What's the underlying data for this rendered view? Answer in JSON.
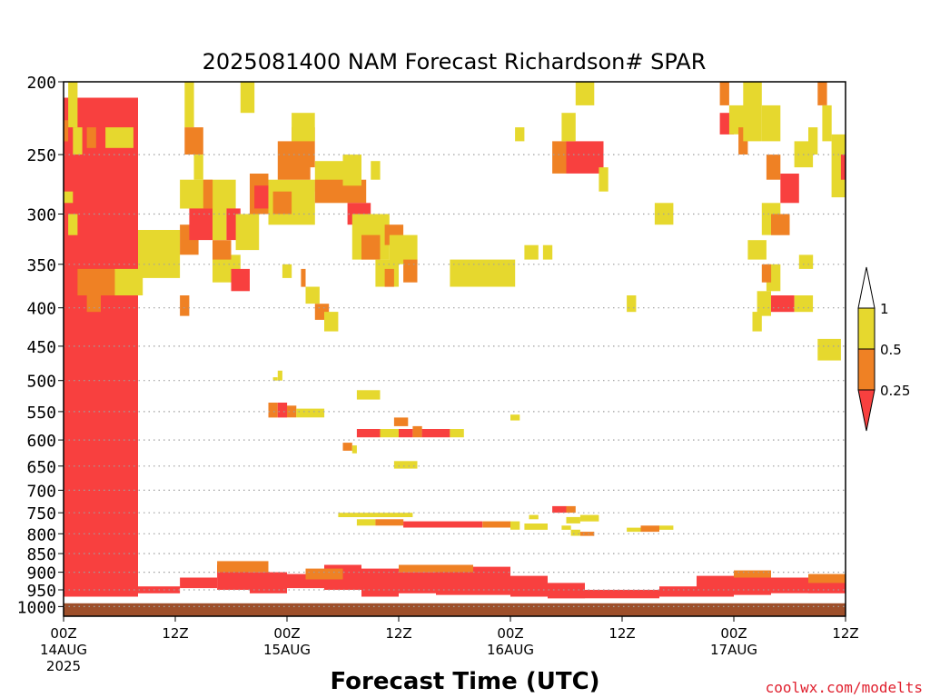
{
  "chart_data": {
    "type": "heatmap",
    "title": "2025081400 NAM Forecast Richardson# SPAR",
    "xlabel": "Forecast Time (UTC)",
    "ylabel": "",
    "credit": "coolwx.com/modelts",
    "y_scale": "log",
    "ylim": [
      1030,
      200
    ],
    "y_ticks": [
      200,
      250,
      300,
      350,
      400,
      450,
      500,
      550,
      600,
      650,
      700,
      750,
      800,
      850,
      900,
      950,
      1000
    ],
    "y_tick_labels": [
      "200",
      "250",
      "300",
      "350",
      "400",
      "450",
      "500",
      "550",
      "600",
      "650",
      "700",
      "750",
      "800",
      "850",
      "900",
      "950",
      "1000"
    ],
    "grid": true,
    "xlim_hours": [
      0,
      84
    ],
    "x_ticks": [
      {
        "hour": 0,
        "label": "00Z",
        "sub": "14AUG",
        "sub2": "2025"
      },
      {
        "hour": 12,
        "label": "12Z",
        "sub": "",
        "sub2": ""
      },
      {
        "hour": 24,
        "label": "00Z",
        "sub": "15AUG",
        "sub2": ""
      },
      {
        "hour": 36,
        "label": "12Z",
        "sub": "",
        "sub2": ""
      },
      {
        "hour": 48,
        "label": "00Z",
        "sub": "16AUG",
        "sub2": ""
      },
      {
        "hour": 60,
        "label": "12Z",
        "sub": "",
        "sub2": ""
      },
      {
        "hour": 72,
        "label": "00Z",
        "sub": "17AUG",
        "sub2": ""
      },
      {
        "hour": 84,
        "label": "12Z",
        "sub": "",
        "sub2": ""
      }
    ],
    "colorbar": {
      "placement": "right",
      "labels": [
        "1",
        "0.5",
        "0.25"
      ],
      "colors": {
        "high": "#e6d82e",
        "mid": "#ef8124",
        "low": "#f8403f",
        "ground": "#9e4f2a",
        "above": "#ffffff"
      }
    },
    "ground_pressure_hPa": 990,
    "cells": [
      [
        0.0,
        8.0,
        210,
        970,
        "low"
      ],
      [
        8.0,
        12.5,
        940,
        960,
        "low"
      ],
      [
        12.5,
        16.5,
        915,
        945,
        "low"
      ],
      [
        16.5,
        20.0,
        880,
        950,
        "low"
      ],
      [
        20.0,
        24.0,
        900,
        960,
        "low"
      ],
      [
        24.0,
        28.0,
        905,
        945,
        "low"
      ],
      [
        28.0,
        32.0,
        880,
        950,
        "low"
      ],
      [
        32.0,
        36.0,
        890,
        970,
        "low"
      ],
      [
        36.0,
        40.0,
        900,
        960,
        "low"
      ],
      [
        40.0,
        44.0,
        880,
        965,
        "low"
      ],
      [
        44.0,
        48.0,
        885,
        965,
        "low"
      ],
      [
        48.0,
        52.0,
        910,
        970,
        "low"
      ],
      [
        52.0,
        56.0,
        930,
        975,
        "low"
      ],
      [
        56.0,
        60.0,
        950,
        975,
        "low"
      ],
      [
        60.0,
        64.0,
        950,
        975,
        "low"
      ],
      [
        64.0,
        68.0,
        940,
        970,
        "low"
      ],
      [
        68.0,
        72.0,
        910,
        970,
        "low"
      ],
      [
        72.0,
        76.0,
        900,
        965,
        "low"
      ],
      [
        76.0,
        80.0,
        915,
        960,
        "low"
      ],
      [
        80.0,
        84.0,
        920,
        960,
        "low"
      ],
      [
        16.5,
        22.0,
        870,
        900,
        "mid"
      ],
      [
        26.0,
        30.0,
        890,
        920,
        "mid"
      ],
      [
        36.0,
        44.0,
        880,
        900,
        "mid"
      ],
      [
        72.0,
        76.0,
        895,
        915,
        "mid"
      ],
      [
        80.0,
        84.0,
        905,
        930,
        "mid"
      ],
      [
        0.5,
        1.5,
        200,
        230,
        "high"
      ],
      [
        0.0,
        0.5,
        225,
        240,
        "mid"
      ],
      [
        1.0,
        2.0,
        230,
        250,
        "high"
      ],
      [
        2.5,
        3.5,
        230,
        245,
        "mid"
      ],
      [
        3.5,
        4.5,
        230,
        245,
        "low"
      ],
      [
        4.5,
        7.5,
        230,
        245,
        "high"
      ],
      [
        0.0,
        1.0,
        280,
        290,
        "high"
      ],
      [
        0.5,
        1.5,
        300,
        320,
        "high"
      ],
      [
        1.5,
        5.5,
        355,
        385,
        "mid"
      ],
      [
        2.5,
        4.0,
        385,
        405,
        "mid"
      ],
      [
        5.5,
        8.5,
        355,
        385,
        "high"
      ],
      [
        8.0,
        12.5,
        315,
        365,
        "high"
      ],
      [
        12.5,
        14.5,
        310,
        340,
        "mid"
      ],
      [
        13.0,
        14.0,
        200,
        230,
        "high"
      ],
      [
        13.0,
        15.0,
        230,
        250,
        "mid"
      ],
      [
        14.0,
        15.0,
        250,
        270,
        "high"
      ],
      [
        12.5,
        18.5,
        270,
        295,
        "high"
      ],
      [
        13.5,
        16.0,
        295,
        325,
        "low"
      ],
      [
        16.0,
        17.5,
        295,
        325,
        "high"
      ],
      [
        17.5,
        19.0,
        295,
        325,
        "low"
      ],
      [
        16.0,
        19.0,
        340,
        370,
        "high"
      ],
      [
        16.0,
        18.0,
        325,
        345,
        "mid"
      ],
      [
        15.0,
        16.0,
        270,
        295,
        "mid"
      ],
      [
        18.5,
        21.0,
        300,
        335,
        "high"
      ],
      [
        18.0,
        20.0,
        355,
        380,
        "low"
      ],
      [
        19.0,
        20.5,
        200,
        220,
        "high"
      ],
      [
        20.0,
        22.0,
        265,
        300,
        "mid"
      ],
      [
        20.5,
        22.5,
        275,
        295,
        "low"
      ],
      [
        22.0,
        27.0,
        270,
        310,
        "high"
      ],
      [
        22.5,
        24.5,
        280,
        300,
        "mid"
      ],
      [
        23.0,
        26.5,
        240,
        270,
        "mid"
      ],
      [
        24.5,
        27.0,
        230,
        260,
        "mid"
      ],
      [
        24.5,
        27.0,
        220,
        240,
        "high"
      ],
      [
        27.0,
        30.0,
        255,
        280,
        "high"
      ],
      [
        27.0,
        32.5,
        270,
        290,
        "mid"
      ],
      [
        30.0,
        32.0,
        250,
        275,
        "high"
      ],
      [
        33.0,
        34.0,
        255,
        270,
        "high"
      ],
      [
        30.5,
        33.0,
        290,
        310,
        "low"
      ],
      [
        31.0,
        35.0,
        300,
        345,
        "high"
      ],
      [
        32.0,
        34.0,
        320,
        345,
        "mid"
      ],
      [
        34.5,
        36.5,
        310,
        330,
        "mid"
      ],
      [
        35.0,
        38.0,
        320,
        350,
        "high"
      ],
      [
        33.5,
        36.0,
        345,
        375,
        "high"
      ],
      [
        34.5,
        35.5,
        355,
        375,
        "mid"
      ],
      [
        36.5,
        38.0,
        345,
        370,
        "mid"
      ],
      [
        42.5,
        47.5,
        350,
        370,
        "low"
      ],
      [
        41.5,
        48.5,
        345,
        375,
        "high"
      ],
      [
        49.5,
        51.0,
        330,
        345,
        "high"
      ],
      [
        51.5,
        52.5,
        330,
        345,
        "high"
      ],
      [
        48.5,
        49.5,
        230,
        240,
        "high"
      ],
      [
        52.5,
        54.0,
        240,
        265,
        "mid"
      ],
      [
        54.0,
        58.0,
        240,
        265,
        "low"
      ],
      [
        53.5,
        55.0,
        220,
        240,
        "high"
      ],
      [
        55.0,
        57.0,
        200,
        215,
        "high"
      ],
      [
        57.5,
        58.5,
        260,
        280,
        "high"
      ],
      [
        60.5,
        61.5,
        385,
        405,
        "high"
      ],
      [
        63.5,
        65.5,
        290,
        310,
        "high"
      ],
      [
        70.5,
        71.5,
        200,
        215,
        "mid"
      ],
      [
        70.5,
        72.0,
        220,
        235,
        "low"
      ],
      [
        71.5,
        73.5,
        215,
        235,
        "high"
      ],
      [
        72.5,
        73.5,
        230,
        250,
        "mid"
      ],
      [
        73.0,
        75.0,
        200,
        240,
        "high"
      ],
      [
        75.0,
        77.0,
        215,
        240,
        "high"
      ],
      [
        75.5,
        77.0,
        250,
        270,
        "mid"
      ],
      [
        77.0,
        79.0,
        265,
        290,
        "low"
      ],
      [
        78.5,
        80.5,
        240,
        260,
        "high"
      ],
      [
        80.0,
        81.0,
        230,
        250,
        "high"
      ],
      [
        81.0,
        82.0,
        200,
        215,
        "mid"
      ],
      [
        81.5,
        82.5,
        215,
        240,
        "high"
      ],
      [
        82.5,
        84.0,
        235,
        285,
        "high"
      ],
      [
        83.5,
        84.0,
        250,
        270,
        "low"
      ],
      [
        75.0,
        77.0,
        290,
        320,
        "high"
      ],
      [
        76.0,
        78.0,
        300,
        320,
        "mid"
      ],
      [
        73.5,
        75.5,
        325,
        345,
        "high"
      ],
      [
        75.5,
        77.0,
        350,
        380,
        "high"
      ],
      [
        75.0,
        76.0,
        350,
        370,
        "mid"
      ],
      [
        74.5,
        76.0,
        380,
        410,
        "high"
      ],
      [
        76.0,
        78.5,
        385,
        405,
        "low"
      ],
      [
        78.5,
        80.5,
        385,
        405,
        "high"
      ],
      [
        79.0,
        80.5,
        340,
        355,
        "high"
      ],
      [
        81.0,
        83.5,
        440,
        470,
        "high"
      ],
      [
        74.0,
        75.0,
        405,
        430,
        "high"
      ],
      [
        12.5,
        13.5,
        385,
        410,
        "mid"
      ],
      [
        23.5,
        24.5,
        350,
        365,
        "high"
      ],
      [
        25.5,
        26.0,
        355,
        375,
        "mid"
      ],
      [
        26.0,
        27.5,
        375,
        395,
        "high"
      ],
      [
        27.0,
        28.5,
        395,
        415,
        "mid"
      ],
      [
        28.0,
        29.5,
        405,
        430,
        "high"
      ],
      [
        22.5,
        23.0,
        495,
        500,
        "high"
      ],
      [
        23.0,
        23.5,
        485,
        500,
        "high"
      ],
      [
        22.0,
        23.0,
        535,
        560,
        "mid"
      ],
      [
        23.0,
        24.0,
        535,
        560,
        "low"
      ],
      [
        24.0,
        25.0,
        540,
        560,
        "mid"
      ],
      [
        25.0,
        28.0,
        545,
        560,
        "high"
      ],
      [
        31.5,
        34.0,
        515,
        530,
        "high"
      ],
      [
        35.5,
        37.0,
        560,
        575,
        "mid"
      ],
      [
        31.5,
        34.0,
        580,
        595,
        "low"
      ],
      [
        34.0,
        36.0,
        580,
        595,
        "high"
      ],
      [
        36.0,
        37.5,
        580,
        595,
        "low"
      ],
      [
        37.5,
        38.5,
        575,
        595,
        "mid"
      ],
      [
        38.5,
        41.5,
        580,
        595,
        "low"
      ],
      [
        41.5,
        43.0,
        580,
        595,
        "high"
      ],
      [
        30.0,
        31.0,
        605,
        620,
        "mid"
      ],
      [
        31.0,
        31.5,
        610,
        625,
        "high"
      ],
      [
        35.5,
        38.0,
        640,
        655,
        "high"
      ],
      [
        48.0,
        49.0,
        555,
        565,
        "high"
      ],
      [
        29.5,
        37.5,
        750,
        760,
        "high"
      ],
      [
        31.5,
        33.5,
        765,
        780,
        "high"
      ],
      [
        33.5,
        36.5,
        765,
        780,
        "mid"
      ],
      [
        36.5,
        45.0,
        770,
        785,
        "low"
      ],
      [
        45.0,
        48.0,
        770,
        785,
        "mid"
      ],
      [
        48.0,
        49.0,
        770,
        790,
        "high"
      ],
      [
        50.0,
        51.0,
        755,
        765,
        "high"
      ],
      [
        49.5,
        52.0,
        775,
        790,
        "high"
      ],
      [
        52.5,
        54.0,
        735,
        750,
        "low"
      ],
      [
        54.0,
        55.0,
        735,
        750,
        "mid"
      ],
      [
        54.0,
        55.5,
        760,
        775,
        "high"
      ],
      [
        55.5,
        57.5,
        755,
        770,
        "high"
      ],
      [
        53.5,
        54.5,
        780,
        790,
        "high"
      ],
      [
        54.5,
        55.5,
        790,
        805,
        "high"
      ],
      [
        55.5,
        57.0,
        795,
        805,
        "mid"
      ],
      [
        60.5,
        62.0,
        785,
        795,
        "high"
      ],
      [
        62.0,
        64.0,
        780,
        795,
        "mid"
      ],
      [
        64.0,
        65.5,
        780,
        790,
        "high"
      ]
    ]
  }
}
